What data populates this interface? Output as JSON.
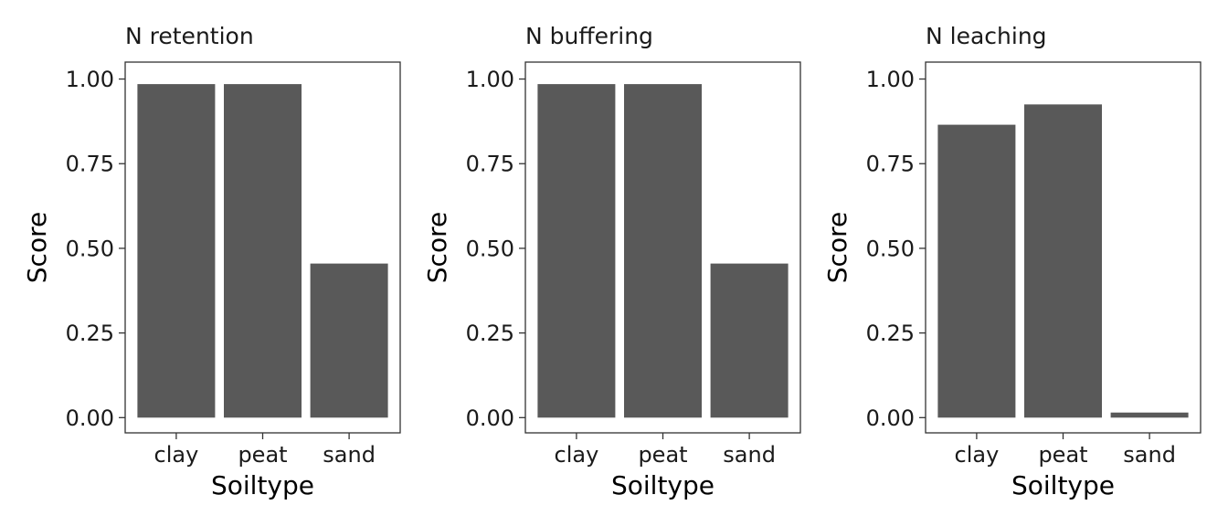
{
  "colors": {
    "bar": "#595959",
    "panel_border": "#333333",
    "text": "#1a1a1a",
    "background": "#ffffff"
  },
  "chart_data": [
    {
      "type": "bar",
      "title": "N retention",
      "categories": [
        "clay",
        "peat",
        "sand"
      ],
      "values": [
        0.985,
        0.985,
        0.455
      ],
      "xlabel": "Soiltype",
      "ylabel": "Score",
      "ylim": [
        -0.045,
        1.05
      ],
      "yticks": [
        0.0,
        0.25,
        0.5,
        0.75,
        1.0
      ],
      "ytick_labels": [
        "0.00",
        "0.25",
        "0.50",
        "0.75",
        "1.00"
      ],
      "grid": false
    },
    {
      "type": "bar",
      "title": "N buffering",
      "categories": [
        "clay",
        "peat",
        "sand"
      ],
      "values": [
        0.985,
        0.985,
        0.455
      ],
      "xlabel": "Soiltype",
      "ylabel": "Score",
      "ylim": [
        -0.045,
        1.05
      ],
      "yticks": [
        0.0,
        0.25,
        0.5,
        0.75,
        1.0
      ],
      "ytick_labels": [
        "0.00",
        "0.25",
        "0.50",
        "0.75",
        "1.00"
      ],
      "grid": false
    },
    {
      "type": "bar",
      "title": "N leaching",
      "categories": [
        "clay",
        "peat",
        "sand"
      ],
      "values": [
        0.865,
        0.925,
        0.015
      ],
      "xlabel": "Soiltype",
      "ylabel": "Score",
      "ylim": [
        -0.045,
        1.05
      ],
      "yticks": [
        0.0,
        0.25,
        0.5,
        0.75,
        1.0
      ],
      "ytick_labels": [
        "0.00",
        "0.25",
        "0.50",
        "0.75",
        "1.00"
      ],
      "grid": false
    }
  ]
}
